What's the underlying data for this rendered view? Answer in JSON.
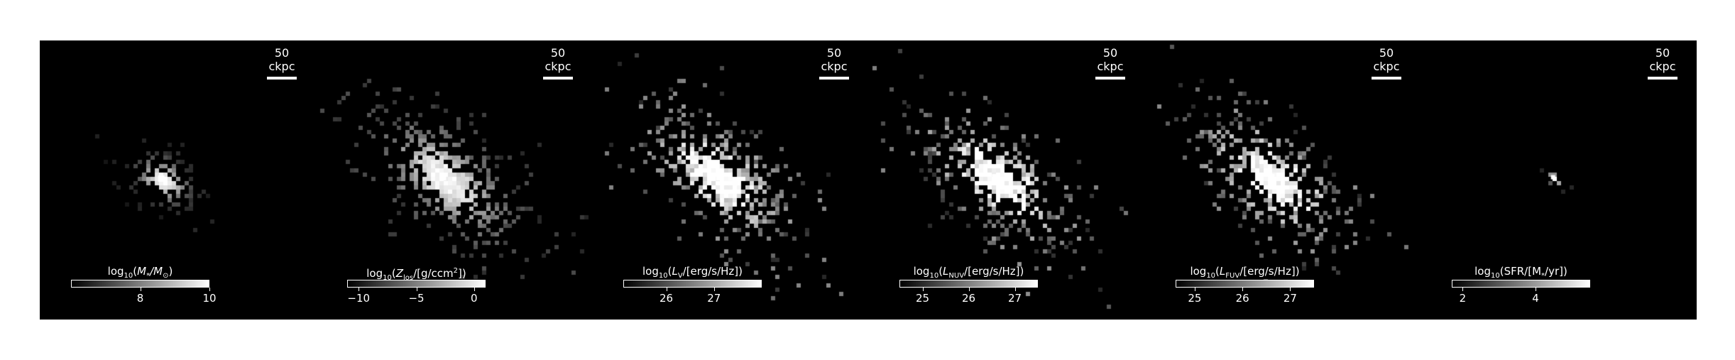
{
  "panels": [
    {
      "id": "mass",
      "scale_label": "50 ckpc",
      "cbar": {
        "base": "log",
        "base_sub": "10",
        "quantity": "M",
        "quantity_sub": "*",
        "unit": "/M",
        "unit_sub": "⊙",
        "tail": ")",
        "min": 6.0,
        "max": 10.0
      },
      "ticks": [
        {
          "label": "8",
          "value": 8
        },
        {
          "label": "10",
          "value": 10
        }
      ],
      "map": {
        "center": [
          0.44,
          0.495
        ],
        "extent": "compact",
        "tilt_deg": -35
      }
    },
    {
      "id": "metallicity",
      "scale_label": "50 ckpc",
      "cbar": {
        "base": "log",
        "base_sub": "10",
        "quantity": "Z",
        "quantity_sub": "los",
        "unit": "/[g/ccm",
        "unit_sup": "2",
        "tail": "])",
        "min": -11.0,
        "max": 1.0
      },
      "ticks": [
        {
          "label": "−10",
          "value": -10
        },
        {
          "label": "−5",
          "value": -5
        },
        {
          "label": "0",
          "value": 0
        }
      ],
      "map": {
        "center": [
          0.46,
          0.49
        ],
        "extent": "extended",
        "tilt_deg": -40
      }
    },
    {
      "id": "lv",
      "scale_label": "50 ckpc",
      "cbar": {
        "base": "log",
        "base_sub": "10",
        "quantity": "L",
        "quantity_sub": "V",
        "unit": "/[erg/s/Hz]",
        "tail": ")",
        "min": 25.1,
        "max": 28.0
      },
      "ticks": [
        {
          "label": "26",
          "value": 26
        },
        {
          "label": "27",
          "value": 27
        }
      ],
      "map": {
        "center": [
          0.46,
          0.49
        ],
        "extent": "extended",
        "tilt_deg": -40
      }
    },
    {
      "id": "lnuv",
      "scale_label": "50 ckpc",
      "cbar": {
        "base": "log",
        "base_sub": "10",
        "quantity": "L",
        "quantity_sub": "NUV",
        "unit": "/[erg/s/Hz]",
        "tail": ")",
        "min": 24.5,
        "max": 27.5
      },
      "ticks": [
        {
          "label": "25",
          "value": 25
        },
        {
          "label": "26",
          "value": 26
        },
        {
          "label": "27",
          "value": 27
        }
      ],
      "map": {
        "center": [
          0.46,
          0.49
        ],
        "extent": "extended",
        "tilt_deg": -40
      }
    },
    {
      "id": "lfuv",
      "scale_label": "50 ckpc",
      "cbar": {
        "base": "log",
        "base_sub": "10",
        "quantity": "L",
        "quantity_sub": "FUV",
        "unit": "/[erg/s/Hz]",
        "tail": ")",
        "min": 24.6,
        "max": 27.5
      },
      "ticks": [
        {
          "label": "25",
          "value": 25
        },
        {
          "label": "26",
          "value": 26
        },
        {
          "label": "27",
          "value": 27
        }
      ],
      "map": {
        "center": [
          0.46,
          0.49
        ],
        "extent": "extended",
        "tilt_deg": -40
      }
    },
    {
      "id": "sfr",
      "scale_label": "50 ckpc",
      "cbar": {
        "base": "log",
        "base_sub": "10",
        "quantity": "(SFR/[M",
        "quantity_sub": "*",
        "unit": "/yr]",
        "tail": ")",
        "min": 1.7,
        "max": 5.5,
        "paren_style": "sfr"
      },
      "ticks": [
        {
          "label": "2",
          "value": 2
        },
        {
          "label": "4",
          "value": 4
        }
      ],
      "map": {
        "center": [
          0.48,
          0.49
        ],
        "extent": "point",
        "tilt_deg": -35
      }
    }
  ]
}
